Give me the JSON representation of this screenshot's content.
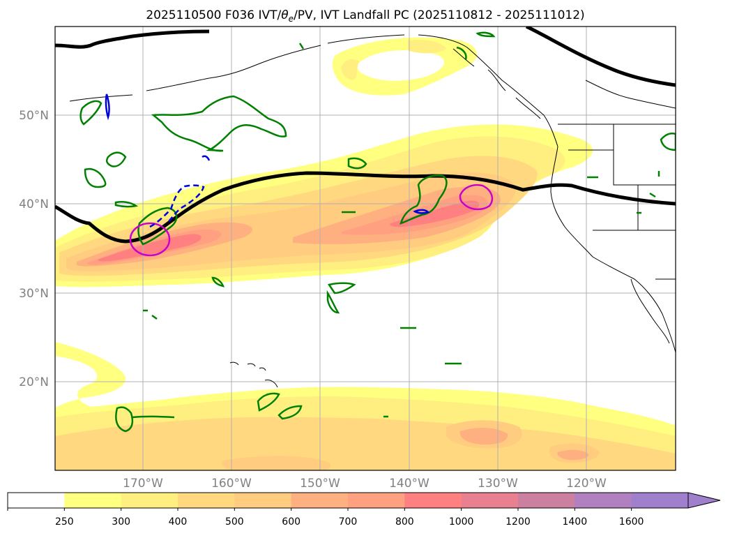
{
  "title": {
    "prefix": "2025110500 F036 IVT/",
    "theta": "θ",
    "sub": "e",
    "suffix": "/PV, IVT Landfall PC (2025110812 - 2025111012)"
  },
  "lat_labels": [
    "50°N",
    "40°N",
    "30°N",
    "20°N"
  ],
  "lon_labels": [
    "170°W",
    "160°W",
    "150°W",
    "140°W",
    "130°W",
    "120°W"
  ],
  "colorbar": {
    "ticks": [
      "250",
      "300",
      "400",
      "500",
      "600",
      "700",
      "800",
      "1000",
      "1200",
      "1400",
      "1600"
    ],
    "colors": [
      "#ffffff",
      "#ffff80",
      "#ffee80",
      "#ffd880",
      "#ffcc80",
      "#ffb080",
      "#ffa080",
      "#ff8080",
      "#e88090",
      "#cc80a0",
      "#b080c0",
      "#a080cc"
    ]
  },
  "colors": {
    "jet": "#000000",
    "pv_green": "#008000",
    "magenta": "#cc00cc",
    "blue": "#0000dd",
    "grid": "#b0b0b0",
    "axis_label": "#808080"
  }
}
